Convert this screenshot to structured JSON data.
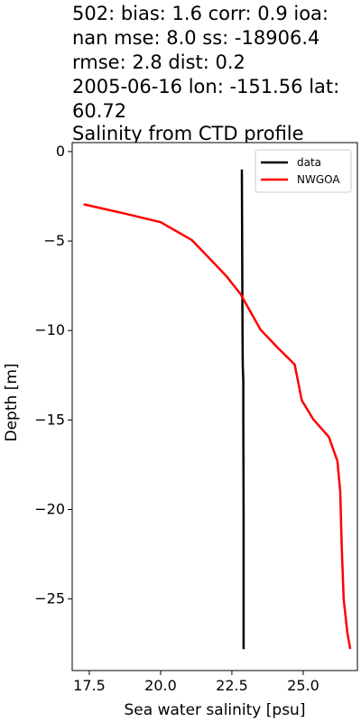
{
  "chart_data": {
    "type": "line",
    "title_lines": [
      "502: bias: 1.6  corr: 0.9  ioa:",
      "nan  mse: 8.0  ss: -18906.4",
      "rmse: 2.8  dist: 0.2",
      "2005-06-16 lon: -151.56 lat:",
      "60.72",
      "Salinity from CTD profile"
    ],
    "xlabel": "Sea water salinity [psu]",
    "ylabel": "Depth [m]",
    "xlim": [
      16.9,
      26.9
    ],
    "ylim": [
      -29.0,
      0.5
    ],
    "xticks": [
      17.5,
      20.0,
      22.5,
      25.0
    ],
    "xtick_labels": [
      "17.5",
      "20.0",
      "22.5",
      "25.0"
    ],
    "yticks": [
      0,
      -5,
      -10,
      -15,
      -20,
      -25
    ],
    "ytick_labels": [
      "0",
      "−5",
      "−10",
      "−15",
      "−20",
      "−25"
    ],
    "legend_position": "upper right",
    "series": [
      {
        "name": "data",
        "color": "#000000",
        "points": [
          [
            22.85,
            -1.0
          ],
          [
            22.86,
            -5.0
          ],
          [
            22.87,
            -10.0
          ],
          [
            22.88,
            -12.0
          ],
          [
            22.9,
            -12.8
          ],
          [
            22.9,
            -15.0
          ],
          [
            22.91,
            -20.0
          ],
          [
            22.91,
            -25.0
          ],
          [
            22.91,
            -27.8
          ]
        ]
      },
      {
        "name": "NWGOA",
        "color": "#ff0000",
        "points": [
          [
            17.3,
            -2.95
          ],
          [
            18.7,
            -3.45
          ],
          [
            20.0,
            -3.95
          ],
          [
            21.1,
            -4.95
          ],
          [
            21.7,
            -5.95
          ],
          [
            22.3,
            -6.95
          ],
          [
            22.8,
            -7.95
          ],
          [
            23.15,
            -8.95
          ],
          [
            23.5,
            -9.95
          ],
          [
            24.1,
            -10.95
          ],
          [
            24.7,
            -11.9
          ],
          [
            24.95,
            -13.9
          ],
          [
            25.35,
            -14.95
          ],
          [
            25.9,
            -15.95
          ],
          [
            26.2,
            -17.3
          ],
          [
            26.3,
            -19.0
          ],
          [
            26.35,
            -22.0
          ],
          [
            26.42,
            -25.0
          ],
          [
            26.55,
            -26.9
          ],
          [
            26.65,
            -27.8
          ]
        ]
      }
    ]
  }
}
